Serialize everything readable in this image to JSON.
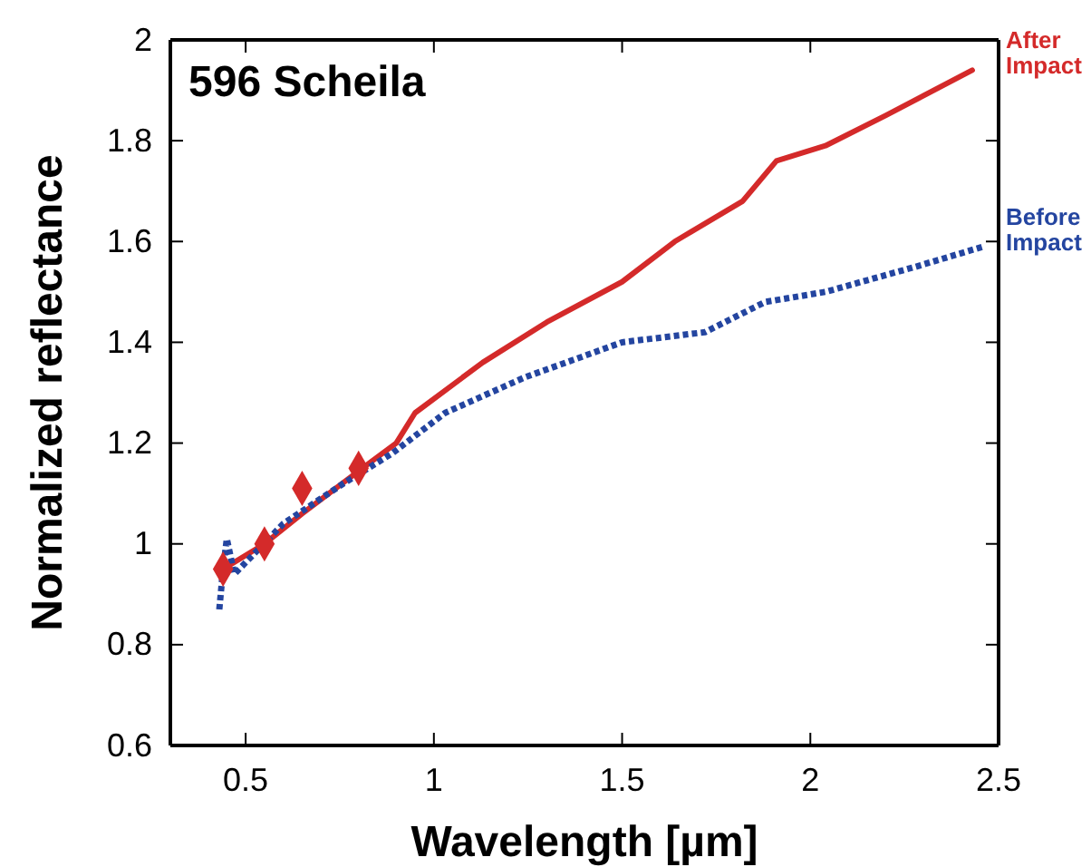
{
  "chart_data": {
    "type": "line",
    "title": "596 Scheila",
    "xlabel": "Wavelength [µm]",
    "ylabel": "Normalized reflectance",
    "xlim": [
      0.3,
      2.5
    ],
    "xticks": [
      0.5,
      1,
      1.5,
      2,
      2.5
    ],
    "ylim": [
      0.6,
      2
    ],
    "yticks": [
      0.6,
      0.8,
      1,
      1.2,
      1.4,
      1.6,
      1.8,
      2
    ],
    "grid": false,
    "series": [
      {
        "name": "After Impact",
        "color": "#d42a2a",
        "line_style": "solid",
        "x": [
          0.44,
          0.55,
          0.65,
          0.81,
          0.9,
          0.95,
          1.13,
          1.3,
          1.5,
          1.64,
          1.82,
          1.91,
          2.04,
          2.2,
          2.43
        ],
        "values": [
          0.95,
          1.0,
          1.06,
          1.15,
          1.2,
          1.26,
          1.36,
          1.44,
          1.52,
          1.6,
          1.68,
          1.76,
          1.79,
          1.85,
          1.94
        ]
      },
      {
        "name": "Before Impact",
        "color": "#2445a0",
        "line_style": "dotted",
        "x": [
          0.43,
          0.44,
          0.45,
          0.47,
          0.6,
          0.76,
          0.89,
          1.03,
          1.24,
          1.5,
          1.72,
          1.88,
          2.04,
          2.28,
          2.46
        ],
        "values": [
          0.87,
          0.95,
          1.01,
          0.94,
          1.04,
          1.12,
          1.18,
          1.26,
          1.33,
          1.4,
          1.42,
          1.48,
          1.5,
          1.55,
          1.59
        ]
      },
      {
        "type": "scatter",
        "marker": "diamond",
        "color": "#d42a2a",
        "x": [
          0.44,
          0.55,
          0.65,
          0.8
        ],
        "values": [
          0.95,
          1.0,
          1.11,
          1.15
        ]
      }
    ]
  }
}
